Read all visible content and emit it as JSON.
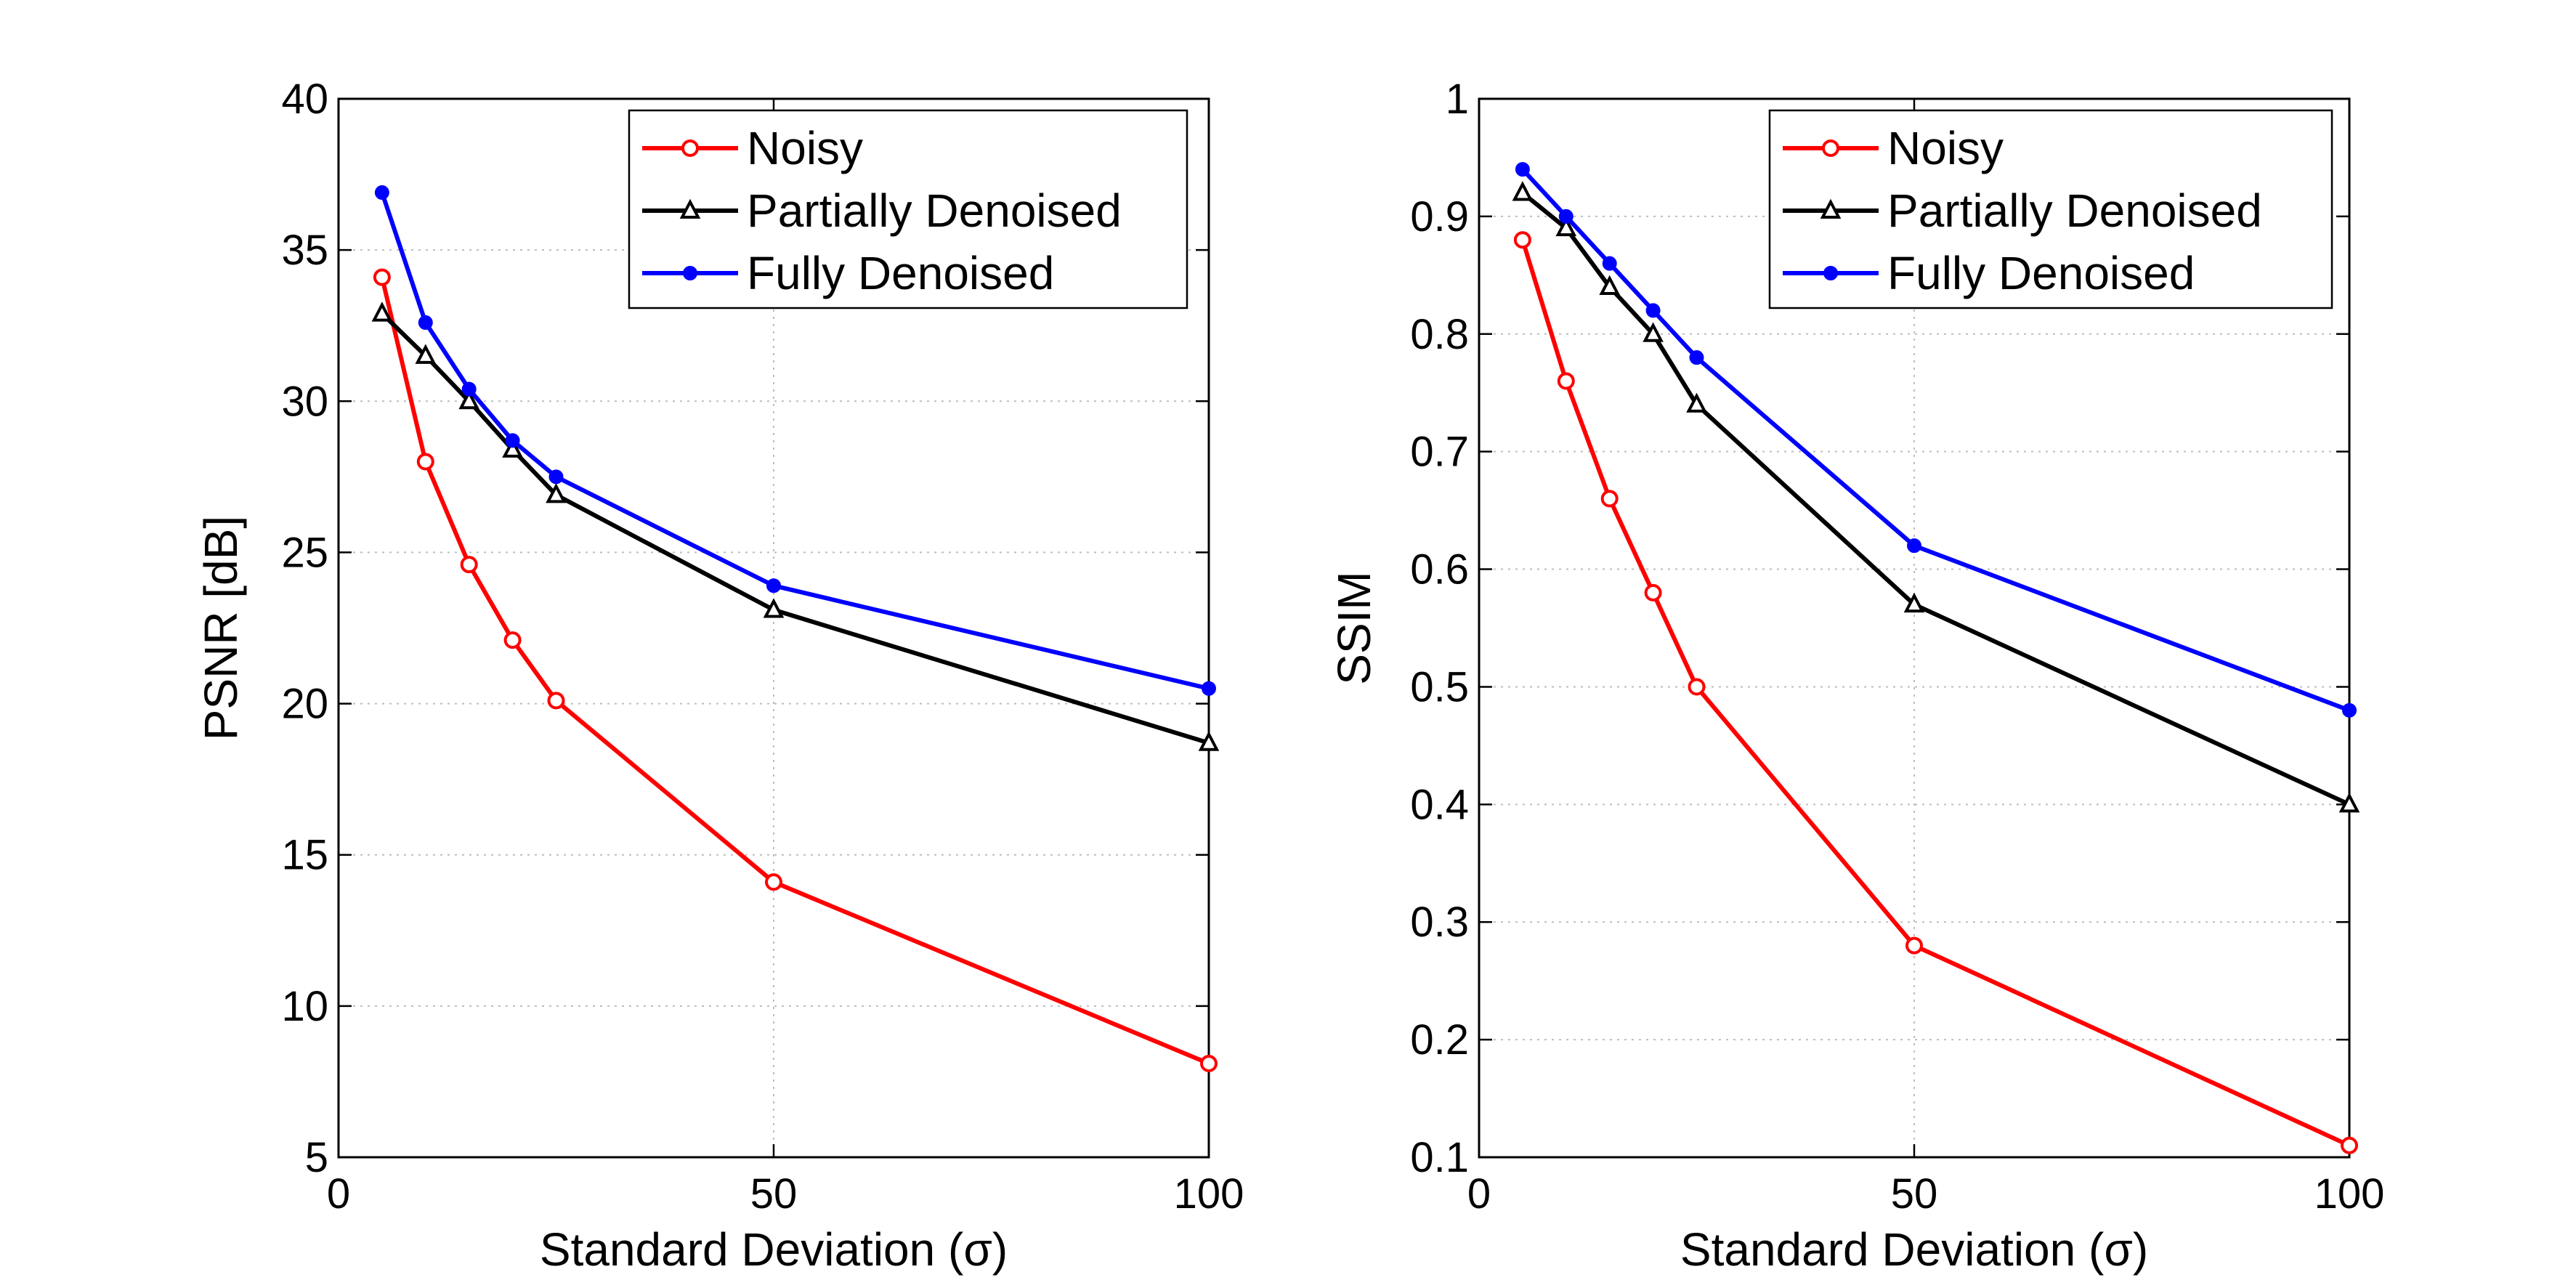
{
  "chart_data": [
    {
      "type": "line",
      "title": "",
      "xlabel": "Standard Deviation (σ)",
      "ylabel": "PSNR [dB]",
      "xlim": [
        0,
        100
      ],
      "ylim": [
        5,
        40
      ],
      "xticks": [
        0,
        50,
        100
      ],
      "yticks": [
        5,
        10,
        15,
        20,
        25,
        30,
        35,
        40
      ],
      "xtick_labels": [
        "0",
        "50",
        "100"
      ],
      "ytick_labels": [
        "5",
        "10",
        "15",
        "20",
        "25",
        "30",
        "35",
        "40"
      ],
      "grid": true,
      "legend_position": "top-right",
      "x": [
        5,
        10,
        15,
        20,
        25,
        50,
        100
      ],
      "series": [
        {
          "name": "Noisy",
          "color": "#ff0000",
          "marker": "circle",
          "values": [
            34.1,
            28.0,
            24.6,
            22.1,
            20.1,
            14.1,
            8.1
          ]
        },
        {
          "name": "Partially Denoised",
          "color": "#000000",
          "marker": "triangle",
          "values": [
            32.9,
            31.5,
            30.0,
            28.4,
            26.9,
            23.1,
            18.7
          ]
        },
        {
          "name": "Fully Denoised",
          "color": "#0000ff",
          "marker": "dot",
          "values": [
            36.9,
            32.6,
            30.4,
            28.7,
            27.5,
            23.9,
            20.5
          ]
        }
      ]
    },
    {
      "type": "line",
      "title": "",
      "xlabel": "Standard Deviation (σ)",
      "ylabel": "SSIM",
      "xlim": [
        0,
        100
      ],
      "ylim": [
        0.1,
        1
      ],
      "xticks": [
        0,
        50,
        100
      ],
      "yticks": [
        0.1,
        0.2,
        0.3,
        0.4,
        0.5,
        0.6,
        0.7,
        0.8,
        0.9,
        1
      ],
      "xtick_labels": [
        "0",
        "50",
        "100"
      ],
      "ytick_labels": [
        "0.1",
        "0.2",
        "0.3",
        "0.4",
        "0.5",
        "0.6",
        "0.7",
        "0.8",
        "0.9",
        "1"
      ],
      "grid": true,
      "legend_position": "top-right",
      "x": [
        5,
        10,
        15,
        20,
        25,
        50,
        100
      ],
      "series": [
        {
          "name": "Noisy",
          "color": "#ff0000",
          "marker": "circle",
          "values": [
            0.88,
            0.76,
            0.66,
            0.58,
            0.5,
            0.28,
            0.11
          ]
        },
        {
          "name": "Partially Denoised",
          "color": "#000000",
          "marker": "triangle",
          "values": [
            0.92,
            0.89,
            0.84,
            0.8,
            0.74,
            0.57,
            0.4
          ]
        },
        {
          "name": "Fully Denoised",
          "color": "#0000ff",
          "marker": "dot",
          "values": [
            0.94,
            0.9,
            0.86,
            0.82,
            0.78,
            0.62,
            0.48
          ]
        }
      ]
    }
  ]
}
